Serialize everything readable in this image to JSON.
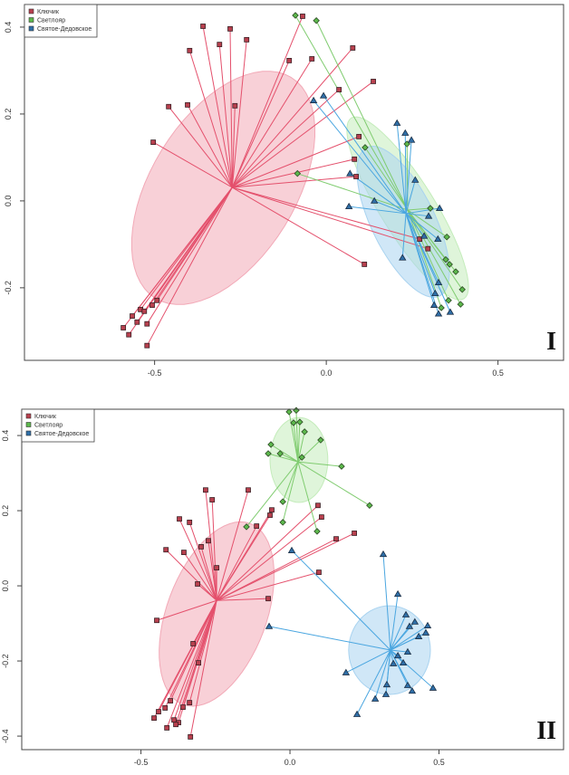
{
  "colors": {
    "Ключик": {
      "marker": "#b8404e",
      "line": "#e4506c",
      "fill": "#f2a9b7"
    },
    "Светлояр": {
      "marker": "#5cb84c",
      "line": "#80cc70",
      "fill": "#c4ecbb"
    },
    "Святое-Дедовское": {
      "marker": "#2f6fa8",
      "line": "#4aa6e0",
      "fill": "#a9d3f0"
    }
  },
  "chart_data": [
    {
      "type": "scatter",
      "panel_label": "I",
      "legend": [
        "Ключик",
        "Светлояр",
        "Святое-Дедовское"
      ],
      "legend_placement": "top-left",
      "markers": {
        "Ключик": "square",
        "Светлояр": "diamond",
        "Святое-Дедовское": "triangle"
      },
      "xlim": [
        -0.879,
        0.691
      ],
      "ylim": [
        -0.367,
        0.452
      ],
      "xticks": [
        "-0.5",
        "0.0",
        "0.5"
      ],
      "yticks": [
        "-0.2",
        "0.0",
        "0.2",
        "0.4"
      ],
      "grid": false,
      "series": [
        {
          "name": "Ключик",
          "centroid": [
            -0.274,
            0.031
          ],
          "ellipse": {
            "center": [
              -0.3,
              0.03
            ],
            "axis_a": [
              0.198,
              0.254
            ],
            "axis_b": [
              0.179,
              -0.0875
            ]
          },
          "points": [
            [
              -0.359,
              0.402
            ],
            [
              -0.28,
              0.396
            ],
            [
              -0.311,
              0.36
            ],
            [
              -0.232,
              0.371
            ],
            [
              -0.398,
              0.346
            ],
            [
              -0.069,
              0.425
            ],
            [
              -0.108,
              0.323
            ],
            [
              -0.042,
              0.327
            ],
            [
              0.077,
              0.352
            ],
            [
              0.137,
              0.275
            ],
            [
              0.037,
              0.256
            ],
            [
              -0.459,
              0.217
            ],
            [
              -0.404,
              0.221
            ],
            [
              -0.266,
              0.219
            ],
            [
              -0.504,
              0.135
            ],
            [
              0.082,
              0.096
            ],
            [
              0.087,
              0.056
            ],
            [
              0.095,
              0.148
            ],
            [
              0.111,
              -0.146
            ],
            [
              0.272,
              -0.088
            ],
            [
              0.296,
              -0.11
            ],
            [
              -0.591,
              -0.292
            ],
            [
              -0.575,
              -0.308
            ],
            [
              -0.522,
              -0.333
            ],
            [
              -0.565,
              -0.265
            ],
            [
              -0.551,
              -0.279
            ],
            [
              -0.541,
              -0.25
            ],
            [
              -0.53,
              -0.254
            ],
            [
              -0.522,
              -0.283
            ],
            [
              -0.507,
              -0.24
            ],
            [
              -0.493,
              -0.229
            ]
          ]
        },
        {
          "name": "Светлояр",
          "centroid": [
            0.237,
            -0.021
          ],
          "ellipse": {
            "center": [
              0.237,
              -0.017
            ],
            "axis_a": [
              0.164,
              -0.208
            ],
            "axis_b": [
              0.067,
              0.033
            ]
          },
          "points": [
            [
              -0.09,
              0.427
            ],
            [
              -0.029,
              0.415
            ],
            [
              0.113,
              0.123
            ],
            [
              -0.084,
              0.063
            ],
            [
              0.235,
              0.131
            ],
            [
              0.303,
              -0.017
            ],
            [
              0.351,
              -0.083
            ],
            [
              0.348,
              -0.135
            ],
            [
              0.359,
              -0.146
            ],
            [
              0.377,
              -0.163
            ],
            [
              0.396,
              -0.204
            ],
            [
              0.356,
              -0.229
            ],
            [
              0.391,
              -0.238
            ],
            [
              0.335,
              -0.246
            ]
          ]
        },
        {
          "name": "Святое-Дедовское",
          "centroid": [
            0.232,
            -0.029
          ],
          "ellipse": {
            "center": [
              0.224,
              -0.048
            ],
            "axis_a": [
              0.106,
              -0.171
            ],
            "axis_b": [
              0.083,
              0.032
            ]
          },
          "points": [
            [
              -0.037,
              0.231
            ],
            [
              -0.008,
              0.242
            ],
            [
              0.206,
              0.179
            ],
            [
              0.23,
              0.156
            ],
            [
              0.248,
              0.14
            ],
            [
              0.259,
              0.048
            ],
            [
              0.069,
              0.063
            ],
            [
              0.066,
              -0.013
            ],
            [
              0.14,
              0.0
            ],
            [
              0.33,
              -0.017
            ],
            [
              0.298,
              -0.035
            ],
            [
              0.285,
              -0.081
            ],
            [
              0.325,
              -0.088
            ],
            [
              0.222,
              -0.131
            ],
            [
              0.327,
              -0.188
            ],
            [
              0.317,
              -0.213
            ],
            [
              0.314,
              -0.24
            ],
            [
              0.327,
              -0.26
            ],
            [
              0.361,
              -0.256
            ]
          ]
        }
      ]
    },
    {
      "type": "scatter",
      "panel_label": "II",
      "legend": [
        "Ключик",
        "Светлояр",
        "Святое-Дедовское"
      ],
      "legend_placement": "top-left",
      "markers": {
        "Ключик": "square",
        "Светлояр": "diamond",
        "Святое-Дедовское": "triangle"
      },
      "xlim": [
        -0.9,
        0.918
      ],
      "ylim": [
        -0.436,
        0.47
      ],
      "xticks": [
        "-0.5",
        "0.0",
        "0.5"
      ],
      "yticks": [
        "-0.4",
        "-0.2",
        "0.0",
        "0.2",
        "0.4"
      ],
      "grid": false,
      "series": [
        {
          "name": "Ключик",
          "centroid": [
            -0.246,
            -0.039
          ],
          "ellipse": {
            "center": [
              -0.246,
              -0.075
            ],
            "axis_a": [
              0.112,
              0.241
            ],
            "axis_b": [
              0.157,
              -0.046
            ]
          },
          "points": [
            [
              -0.283,
              0.255
            ],
            [
              -0.261,
              0.229
            ],
            [
              -0.14,
              0.255
            ],
            [
              -0.371,
              0.178
            ],
            [
              -0.337,
              0.169
            ],
            [
              -0.274,
              0.12
            ],
            [
              -0.298,
              0.104
            ],
            [
              -0.416,
              0.096
            ],
            [
              -0.356,
              0.089
            ],
            [
              -0.246,
              0.048
            ],
            [
              -0.31,
              0.005
            ],
            [
              -0.061,
              0.202
            ],
            [
              -0.067,
              0.188
            ],
            [
              -0.112,
              0.159
            ],
            [
              0.094,
              0.214
            ],
            [
              0.106,
              0.183
            ],
            [
              0.155,
              0.125
            ],
            [
              0.216,
              0.14
            ],
            [
              0.097,
              0.036
            ],
            [
              -0.073,
              -0.034
            ],
            [
              -0.447,
              -0.092
            ],
            [
              -0.325,
              -0.154
            ],
            [
              -0.307,
              -0.205
            ],
            [
              -0.401,
              -0.306
            ],
            [
              -0.337,
              -0.311
            ],
            [
              -0.359,
              -0.323
            ],
            [
              -0.419,
              -0.325
            ],
            [
              -0.441,
              -0.335
            ],
            [
              -0.456,
              -0.352
            ],
            [
              -0.389,
              -0.357
            ],
            [
              -0.374,
              -0.364
            ],
            [
              -0.383,
              -0.369
            ],
            [
              -0.413,
              -0.378
            ],
            [
              -0.334,
              -0.402
            ]
          ]
        },
        {
          "name": "Светлояр",
          "centroid": [
            0.027,
            0.33
          ],
          "ellipse": {
            "center": [
              0.03,
              0.335
            ],
            "axis_a": [
              0,
              0.113
            ],
            "axis_b": [
              0.097,
              0
            ]
          },
          "points": [
            [
              -0.003,
              0.463
            ],
            [
              0.021,
              0.467
            ],
            [
              0.012,
              0.434
            ],
            [
              0.033,
              0.436
            ],
            [
              0.049,
              0.41
            ],
            [
              0.103,
              0.388
            ],
            [
              -0.064,
              0.376
            ],
            [
              -0.073,
              0.352
            ],
            [
              -0.033,
              0.352
            ],
            [
              0.04,
              0.342
            ],
            [
              0.173,
              0.318
            ],
            [
              0.267,
              0.214
            ],
            [
              -0.024,
              0.224
            ],
            [
              -0.024,
              0.169
            ],
            [
              -0.146,
              0.157
            ],
            [
              0.091,
              0.145
            ]
          ]
        },
        {
          "name": "Святое-Дедовское",
          "centroid": [
            0.337,
            -0.171
          ],
          "ellipse": {
            "center": [
              0.334,
              -0.171
            ],
            "axis_a": [
              0.137,
              0
            ],
            "axis_b": [
              0,
              0.118
            ]
          },
          "points": [
            [
              0.006,
              0.094
            ],
            [
              0.313,
              0.084
            ],
            [
              0.362,
              -0.022
            ],
            [
              0.389,
              -0.077
            ],
            [
              0.419,
              -0.096
            ],
            [
              0.401,
              -0.108
            ],
            [
              0.462,
              -0.106
            ],
            [
              0.456,
              -0.125
            ],
            [
              0.432,
              -0.135
            ],
            [
              -0.07,
              -0.108
            ],
            [
              0.395,
              -0.176
            ],
            [
              0.362,
              -0.186
            ],
            [
              0.38,
              -0.205
            ],
            [
              0.347,
              -0.207
            ],
            [
              0.188,
              -0.231
            ],
            [
              0.325,
              -0.263
            ],
            [
              0.395,
              -0.265
            ],
            [
              0.41,
              -0.28
            ],
            [
              0.48,
              -0.272
            ],
            [
              0.322,
              -0.289
            ],
            [
              0.286,
              -0.301
            ],
            [
              0.225,
              -0.342
            ]
          ]
        }
      ]
    }
  ]
}
